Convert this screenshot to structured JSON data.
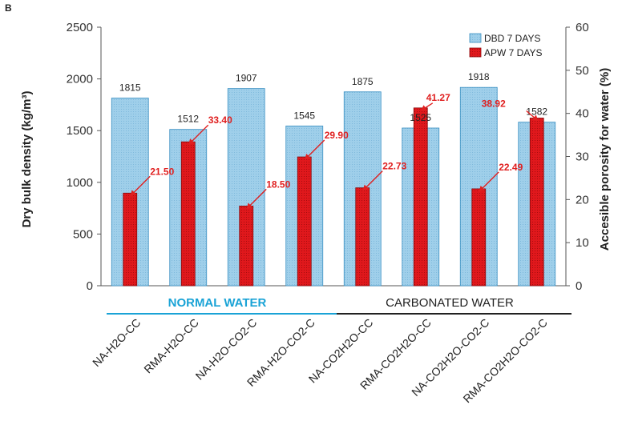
{
  "panel_label": "B",
  "chart_data": {
    "type": "bar",
    "categories": [
      "NA-H2O-CC",
      "RMA-H2O-CC",
      "NA-H2O-CO2-C",
      "RMA-H2O-CO2-C",
      "NA-CO2H2O-CC",
      "RMA-CO2H2O-CC",
      "NA-CO2H2O-CO2-C",
      "RMA-CO2H2O-CO2-C"
    ],
    "series": [
      {
        "name": "DBD 7 DAYS",
        "axis": "left",
        "values": [
          1815,
          1512,
          1907,
          1545,
          1875,
          1525,
          1918,
          1582
        ],
        "labels": [
          "1815",
          "1512",
          "1907",
          "1545",
          "1875",
          "1525",
          "1918",
          "1582"
        ],
        "color": "#9fcfea"
      },
      {
        "name": "APW 7 DAYS",
        "axis": "right",
        "values": [
          21.5,
          33.4,
          18.5,
          29.9,
          22.73,
          41.27,
          22.49,
          38.92
        ],
        "labels": [
          "21.50",
          "33.40",
          "18.50",
          "29.90",
          "22.73",
          "41.27",
          "22.49",
          "38.92"
        ],
        "color": "#e0181c"
      }
    ],
    "ylabel": "Dry bulk density (kg/m³)",
    "y2label": "Accesible porosity for water (%)",
    "ylim": [
      0,
      2500
    ],
    "y2lim": [
      0,
      60
    ],
    "yticks": [
      "0",
      "500",
      "1000",
      "1500",
      "2000",
      "2500"
    ],
    "y2ticks": [
      "0",
      "10",
      "20",
      "30",
      "40",
      "50",
      "60"
    ],
    "grid": false,
    "legend_position": "top-right",
    "groups": [
      {
        "label": "NORMAL WATER",
        "categories": 4,
        "color": "#1aa3d6"
      },
      {
        "label": "CARBONATED WATER",
        "categories": 4,
        "color": "#222222"
      }
    ]
  }
}
